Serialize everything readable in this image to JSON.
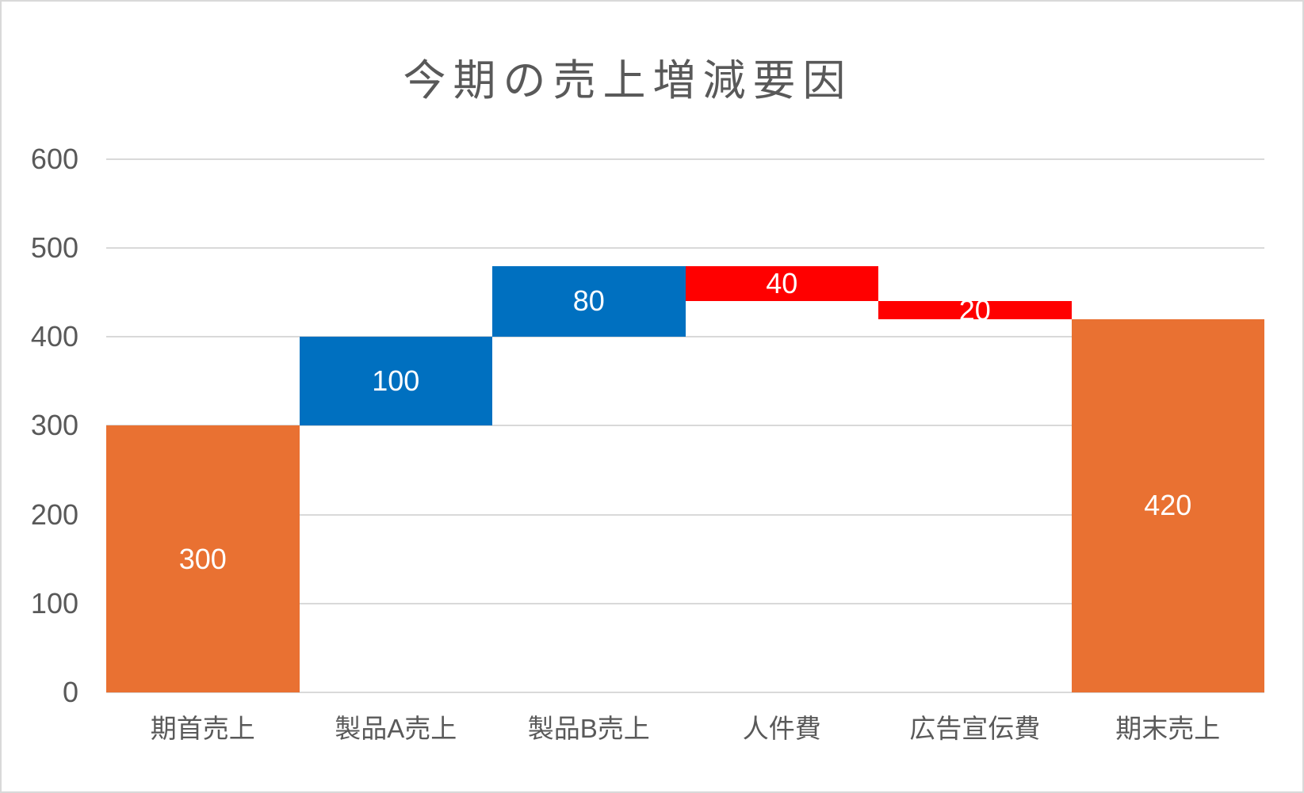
{
  "chart_data": {
    "type": "bar",
    "subtype": "waterfall",
    "title": "今期の売上増減要因",
    "categories": [
      "期首売上",
      "製品A売上",
      "製品B売上",
      "人件費",
      "広告宣伝費",
      "期末売上"
    ],
    "bars": [
      {
        "category": "期首売上",
        "role": "total",
        "value": 300,
        "base": 0,
        "top": 300,
        "label": "300",
        "color": "#E97132"
      },
      {
        "category": "製品A売上",
        "role": "increase",
        "value": 100,
        "base": 300,
        "top": 400,
        "label": "100",
        "color": "#0070C0"
      },
      {
        "category": "製品B売上",
        "role": "increase",
        "value": 80,
        "base": 400,
        "top": 480,
        "label": "80",
        "color": "#0070C0"
      },
      {
        "category": "人件費",
        "role": "decrease",
        "value": -40,
        "base": 440,
        "top": 480,
        "label": "40",
        "color": "#FF0000"
      },
      {
        "category": "広告宣伝費",
        "role": "decrease",
        "value": -20,
        "base": 420,
        "top": 440,
        "label": "20",
        "color": "#FF0000"
      },
      {
        "category": "期末売上",
        "role": "total",
        "value": 420,
        "base": 0,
        "top": 420,
        "label": "420",
        "color": "#E97132"
      }
    ],
    "xlabel": "",
    "ylabel": "",
    "ylim": [
      0,
      600
    ],
    "ytick_step": 100,
    "yticks": [
      {
        "value": 600,
        "label": "600"
      },
      {
        "value": 500,
        "label": "500"
      },
      {
        "value": 400,
        "label": "400"
      },
      {
        "value": 300,
        "label": "300"
      },
      {
        "value": 200,
        "label": "200"
      },
      {
        "value": 100,
        "label": "100"
      },
      {
        "value": 0,
        "label": "0"
      }
    ],
    "grid": true,
    "legend": "none",
    "colors": {
      "increase": "#0070C0",
      "decrease": "#FF0000",
      "total": "#E97132",
      "data_label": "#FFFFFF",
      "axis_text": "#595959",
      "gridline": "#D9D9D9",
      "title_text": "#595959",
      "background": "#FFFFFF",
      "border": "#D9D9D9"
    }
  }
}
